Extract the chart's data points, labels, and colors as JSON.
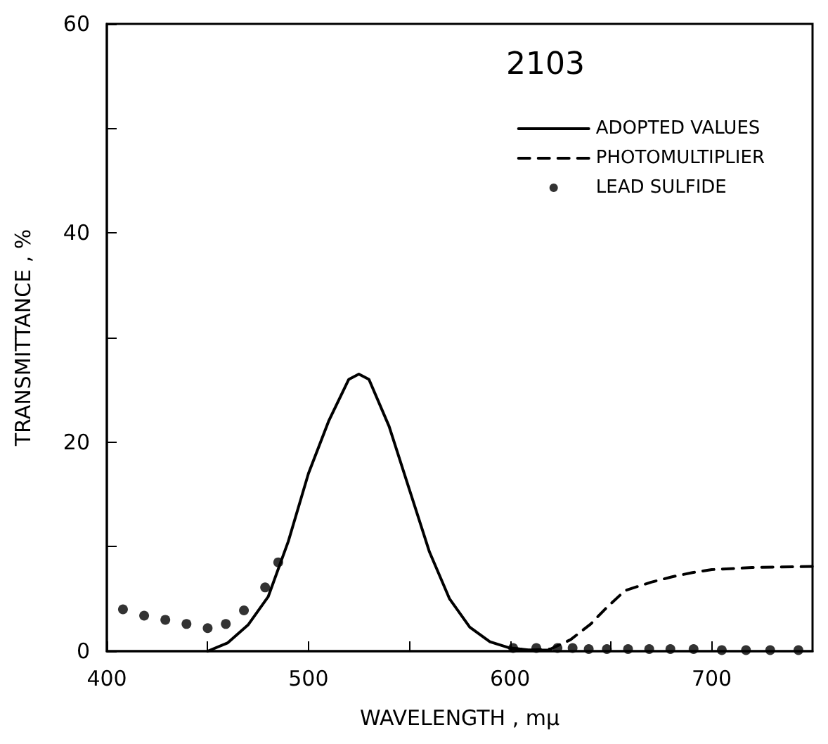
{
  "chart_data": {
    "type": "line",
    "title": "2103",
    "xlabel": "WAVELENGTH , mμ",
    "ylabel": "TRANSMITTANCE , %",
    "xlim": [
      400,
      750
    ],
    "xticks": [
      400,
      {
        "value": 450,
        "label": null
      },
      500,
      {
        "value": 550,
        "label": null
      },
      600,
      {
        "value": 650,
        "label": null
      },
      700
    ],
    "ylim": [
      0,
      60
    ],
    "yticks": [
      0,
      {
        "value": 10,
        "label": null
      },
      20,
      {
        "value": 30,
        "label": null
      },
      40,
      {
        "value": 50,
        "label": null
      },
      60
    ],
    "grid": false,
    "legend": "top right",
    "series": [
      {
        "name": "ADOPTED VALUES",
        "line_style": "solid",
        "marker": "none",
        "color": "#000000",
        "x": [
          450,
          460,
          470,
          480,
          490,
          500,
          510,
          520,
          525,
          530,
          540,
          550,
          560,
          570,
          580,
          590,
          600,
          610,
          620
        ],
        "values": [
          0,
          0.8,
          2.5,
          5.2,
          10.5,
          17,
          22,
          26,
          26.5,
          26,
          21.5,
          15.5,
          9.5,
          5,
          2.3,
          0.9,
          0.3,
          0.1,
          0.1
        ]
      },
      {
        "name": "PHOTOMULTIPLIER",
        "line_style": "dashed",
        "marker": "none",
        "color": "#000000",
        "x": [
          600,
          610,
          620,
          630,
          640,
          647,
          657,
          670,
          680,
          690,
          700,
          720,
          750
        ],
        "values": [
          0.3,
          0.1,
          0.2,
          1.1,
          2.6,
          4,
          5.8,
          6.6,
          7.1,
          7.5,
          7.8,
          8,
          8.1
        ]
      },
      {
        "name": "LEAD SULFIDE",
        "type": "scatter",
        "marker": "circle",
        "color": "#000000",
        "x": [
          408,
          418.5,
          429,
          439.5,
          450,
          459,
          468,
          478.5,
          485,
          601.5,
          613,
          623.5,
          631,
          639,
          648,
          658.5,
          669,
          679.5,
          691,
          705,
          717,
          729,
          743
        ],
        "values": [
          4,
          3.4,
          3,
          2.6,
          2.2,
          2.6,
          3.9,
          6.1,
          8.5,
          0.3,
          0.3,
          0.3,
          0.3,
          0.2,
          0.2,
          0.2,
          0.2,
          0.2,
          0.2,
          0.1,
          0.1,
          0.1,
          0.1
        ]
      }
    ]
  }
}
